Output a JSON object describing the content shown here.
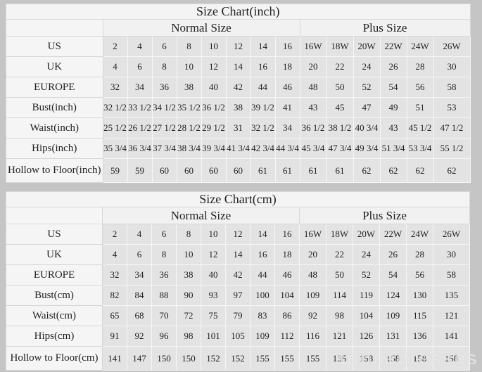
{
  "colors": {
    "page_bg": "#c5c5c5",
    "table_bg": "#f4f4f4",
    "data_cell_bg": "#e3e3e3",
    "label_cell_bg": "#f5f5f5",
    "text": "#1f1f1f"
  },
  "watermark": "sposadresses",
  "chart_data": [
    {
      "type": "table",
      "title": "Size Chart(inch)",
      "section_headers": [
        "Normal Size",
        "Plus Size"
      ],
      "normal_columns": [
        "2",
        "4",
        "6",
        "8",
        "10",
        "12",
        "14",
        "16"
      ],
      "plus_columns": [
        "16W",
        "18W",
        "20W",
        "22W",
        "24W",
        "26W"
      ],
      "rows": [
        {
          "label": "US",
          "values": [
            "2",
            "4",
            "6",
            "8",
            "10",
            "12",
            "14",
            "16",
            "16W",
            "18W",
            "20W",
            "22W",
            "24W",
            "26W"
          ]
        },
        {
          "label": "UK",
          "values": [
            "4",
            "6",
            "8",
            "10",
            "12",
            "14",
            "16",
            "18",
            "20",
            "22",
            "24",
            "26",
            "28",
            "30"
          ]
        },
        {
          "label": "EUROPE",
          "values": [
            "32",
            "34",
            "36",
            "38",
            "40",
            "42",
            "44",
            "46",
            "48",
            "50",
            "52",
            "54",
            "56",
            "58"
          ]
        },
        {
          "label": "Bust(inch)",
          "values": [
            "32 1/2",
            "33 1/2",
            "34 1/2",
            "35 1/2",
            "36 1/2",
            "38",
            "39 1/2",
            "41",
            "43",
            "45",
            "47",
            "49",
            "51",
            "53"
          ]
        },
        {
          "label": "Waist(inch)",
          "values": [
            "25 1/2",
            "26 1/2",
            "27 1/2",
            "28 1/2",
            "29 1/2",
            "31",
            "32 1/2",
            "34",
            "36 1/2",
            "38 1/2",
            "40 3/4",
            "43",
            "45 1/2",
            "47 1/2"
          ]
        },
        {
          "label": "Hips(inch)",
          "values": [
            "35 3/4",
            "36 3/4",
            "37 3/4",
            "38 3/4",
            "39 3/4",
            "41 3/4",
            "42 3/4",
            "44 3/4",
            "45 3/4",
            "47 3/4",
            "49 3/4",
            "51 3/4",
            "53 3/4",
            "55 1/2"
          ]
        },
        {
          "label": "Hollow to Floor(inch)",
          "values": [
            "59",
            "59",
            "60",
            "60",
            "60",
            "60",
            "61",
            "61",
            "61",
            "61",
            "62",
            "62",
            "62",
            "62"
          ]
        }
      ]
    },
    {
      "type": "table",
      "title": "Size Chart(cm)",
      "section_headers": [
        "Normal Size",
        "Plus Size"
      ],
      "normal_columns": [
        "2",
        "4",
        "6",
        "8",
        "10",
        "12",
        "14",
        "16"
      ],
      "plus_columns": [
        "16W",
        "18W",
        "20W",
        "22W",
        "24W",
        "26W"
      ],
      "rows": [
        {
          "label": "US",
          "values": [
            "2",
            "4",
            "6",
            "8",
            "10",
            "12",
            "14",
            "16",
            "16W",
            "18W",
            "20W",
            "22W",
            "24W",
            "26W"
          ]
        },
        {
          "label": "UK",
          "values": [
            "4",
            "6",
            "8",
            "10",
            "12",
            "14",
            "16",
            "18",
            "20",
            "22",
            "24",
            "26",
            "28",
            "30"
          ]
        },
        {
          "label": "EUROPE",
          "values": [
            "32",
            "34",
            "36",
            "38",
            "40",
            "42",
            "44",
            "46",
            "48",
            "50",
            "52",
            "54",
            "56",
            "58"
          ]
        },
        {
          "label": "Bust(cm)",
          "values": [
            "82",
            "84",
            "88",
            "90",
            "93",
            "97",
            "100",
            "104",
            "109",
            "114",
            "119",
            "124",
            "130",
            "135"
          ]
        },
        {
          "label": "Waist(cm)",
          "values": [
            "65",
            "68",
            "70",
            "72",
            "75",
            "79",
            "83",
            "86",
            "92",
            "98",
            "104",
            "109",
            "115",
            "121"
          ]
        },
        {
          "label": "Hips(cm)",
          "values": [
            "91",
            "92",
            "96",
            "98",
            "101",
            "105",
            "109",
            "112",
            "116",
            "121",
            "126",
            "131",
            "136",
            "141"
          ]
        },
        {
          "label": "Hollow to Floor(cm)",
          "values": [
            "141",
            "147",
            "150",
            "150",
            "152",
            "152",
            "155",
            "155",
            "155",
            "155",
            "158",
            "158",
            "158",
            "158"
          ]
        }
      ]
    }
  ]
}
